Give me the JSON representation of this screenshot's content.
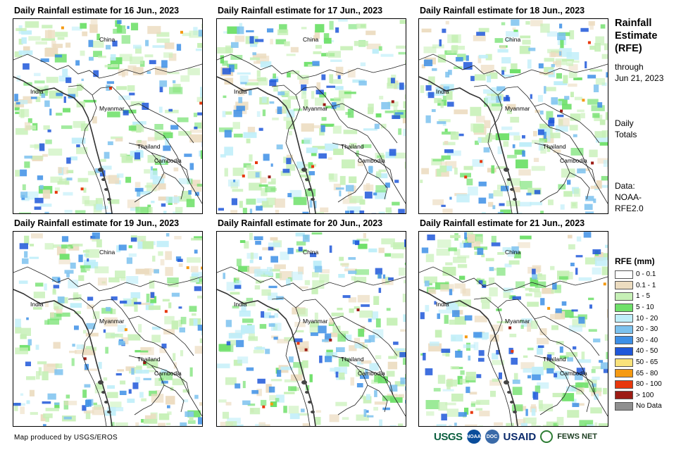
{
  "panels": [
    {
      "title": "Daily Rainfall estimate for 16 Jun., 2023"
    },
    {
      "title": "Daily Rainfall estimate for 17 Jun., 2023"
    },
    {
      "title": "Daily Rainfall estimate for 18 Jun., 2023"
    },
    {
      "title": "Daily Rainfall estimate for 19 Jun., 2023"
    },
    {
      "title": "Daily Rainfall estimate for 20 Jun., 2023"
    },
    {
      "title": "Daily Rainfall estimate for 21 Jun., 2023"
    }
  ],
  "map_labels": {
    "china": "China",
    "india": "India",
    "myanmar": "Myanmar",
    "thailand": "Thailand",
    "cambodia": "Cambodia"
  },
  "side": {
    "title_line1": "Rainfall",
    "title_line2": "Estimate",
    "title_line3": "(RFE)",
    "through_line1": "through",
    "through_line2": "Jun 21, 2023",
    "daily_line1": "Daily",
    "daily_line2": "Totals",
    "source_line1": "Data:",
    "source_line2": "NOAA-",
    "source_line3": "RFE2.0"
  },
  "legend": {
    "title": "RFE (mm)",
    "items": [
      {
        "label": "0 - 0.1",
        "color": "#ffffff"
      },
      {
        "label": "0.1 - 1",
        "color": "#ecdcc0"
      },
      {
        "label": "1 - 5",
        "color": "#c6f0b6"
      },
      {
        "label": "5 - 10",
        "color": "#6fe06a"
      },
      {
        "label": "10 - 20",
        "color": "#bfeef9"
      },
      {
        "label": "20 - 30",
        "color": "#7cc2ee"
      },
      {
        "label": "30 - 40",
        "color": "#3d8fe6"
      },
      {
        "label": "40 - 50",
        "color": "#1f57d9"
      },
      {
        "label": "50 - 65",
        "color": "#f9e27a"
      },
      {
        "label": "65 - 80",
        "color": "#f59a12"
      },
      {
        "label": "80 - 100",
        "color": "#e8380d"
      },
      {
        "label": "> 100",
        "color": "#9c1b14"
      },
      {
        "label": "No Data",
        "color": "#8f8f8f"
      }
    ]
  },
  "footer": {
    "credit": "Map produced by USGS/EROS"
  },
  "logos": {
    "usgs": "USGS",
    "noaa": "NOAA",
    "doc": "DOC",
    "usaid": "USAID",
    "fews": "FEWS NET"
  }
}
